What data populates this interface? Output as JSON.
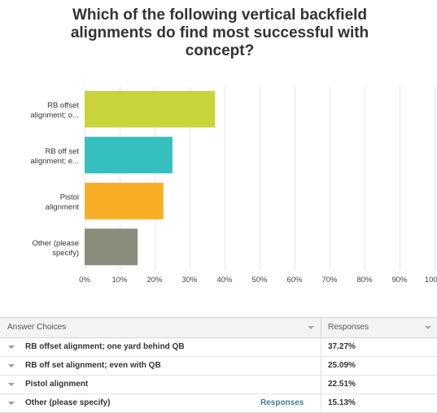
{
  "chart_data": {
    "type": "bar",
    "orientation": "horizontal",
    "title": "Which of the following vertical backfield alignments do find most successful with concept?",
    "categories": [
      "RB offset alignment; o...",
      "RB off set alignment; e...",
      "Pistol alignment",
      "Other (please specify)"
    ],
    "category_lines": [
      [
        "RB offset",
        "alignment; o..."
      ],
      [
        "RB off set",
        "alignment; e..."
      ],
      [
        "Pistol",
        "alignment"
      ],
      [
        "Other (please",
        "specify)"
      ]
    ],
    "values": [
      37.27,
      25.09,
      22.51,
      15.13
    ],
    "colors": [
      "#c8d43a",
      "#35bfc0",
      "#f7ae26",
      "#8c8c7c"
    ],
    "xlim": [
      0,
      100
    ],
    "xticks": [
      "0%",
      "10%",
      "20%",
      "30%",
      "40%",
      "50%",
      "60%",
      "70%",
      "80%",
      "90%",
      "100%"
    ],
    "xlabel": "",
    "ylabel": "",
    "grid": true
  },
  "table": {
    "header_choices": "Answer Choices",
    "header_responses": "Responses",
    "rows": [
      {
        "label": "RB offset alignment; one yard behind QB",
        "link": "",
        "percent": "37.27%"
      },
      {
        "label": "RB off set alignment; even with QB",
        "link": "",
        "percent": "25.09%"
      },
      {
        "label": "Pistol alignment",
        "link": "",
        "percent": "22.51%"
      },
      {
        "label": "Other (please specify)",
        "link": "Responses",
        "percent": "15.13%"
      }
    ]
  }
}
